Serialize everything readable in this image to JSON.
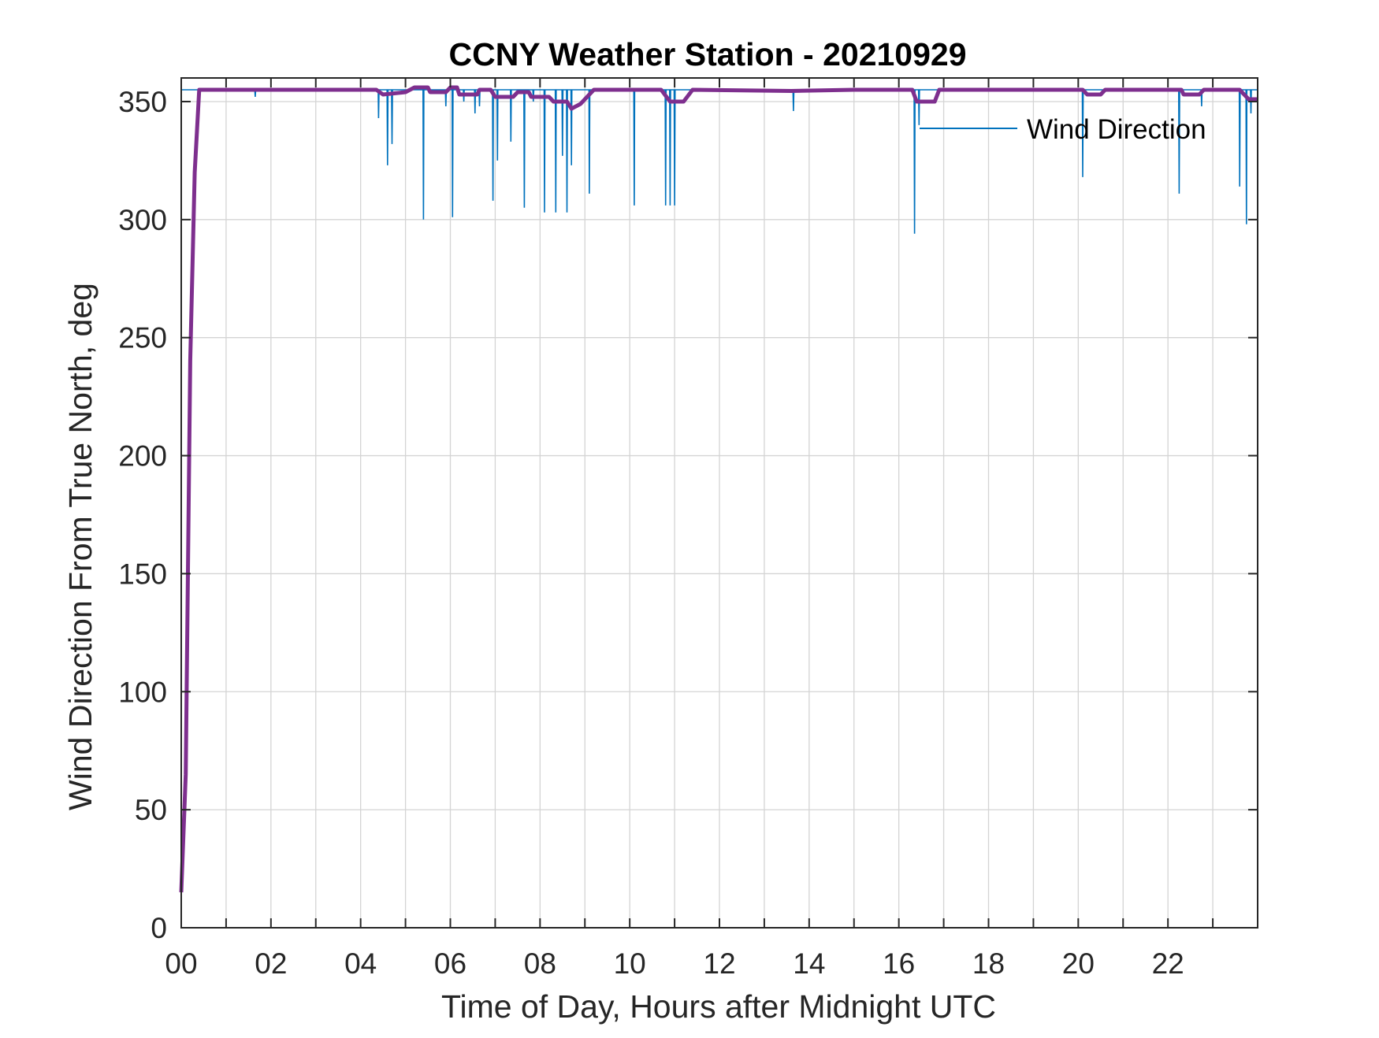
{
  "chart_data": {
    "type": "line",
    "title": "CCNY Weather Station - 20210929",
    "xlabel": "Time of Day, Hours after Midnight UTC",
    "ylabel": "Wind Direction From True North, deg",
    "xlim": [
      0,
      24
    ],
    "ylim": [
      0,
      360
    ],
    "x_ticks": [
      0,
      2,
      4,
      6,
      8,
      10,
      12,
      14,
      16,
      18,
      20,
      22
    ],
    "x_tick_labels": [
      "00",
      "02",
      "04",
      "06",
      "08",
      "10",
      "12",
      "14",
      "16",
      "18",
      "20",
      "22"
    ],
    "y_ticks": [
      0,
      50,
      100,
      150,
      200,
      250,
      300,
      350
    ],
    "y_tick_labels": [
      "0",
      "50",
      "100",
      "150",
      "200",
      "250",
      "300",
      "350"
    ],
    "grid": true,
    "legend": {
      "position": "top-right",
      "entries": [
        "Wind Direction"
      ]
    },
    "series": [
      {
        "name": "Wind Direction",
        "color": "#0072BD",
        "baseline": [
          [
            0,
            355
          ],
          [
            24,
            355
          ]
        ],
        "spikes": [
          [
            1.65,
            352
          ],
          [
            4.4,
            343
          ],
          [
            4.6,
            323
          ],
          [
            4.7,
            332
          ],
          [
            5.4,
            300
          ],
          [
            5.9,
            348
          ],
          [
            6.05,
            301
          ],
          [
            6.3,
            350
          ],
          [
            6.55,
            345
          ],
          [
            6.65,
            348
          ],
          [
            6.95,
            308
          ],
          [
            7.05,
            325
          ],
          [
            7.35,
            333
          ],
          [
            7.65,
            305
          ],
          [
            7.85,
            350
          ],
          [
            8.1,
            303
          ],
          [
            8.35,
            303
          ],
          [
            8.5,
            327
          ],
          [
            8.6,
            303
          ],
          [
            8.7,
            323
          ],
          [
            9.1,
            311
          ],
          [
            10.1,
            306
          ],
          [
            10.8,
            306
          ],
          [
            10.9,
            306
          ],
          [
            11.0,
            306
          ],
          [
            13.65,
            346
          ],
          [
            16.35,
            294
          ],
          [
            16.45,
            340
          ],
          [
            20.1,
            318
          ],
          [
            22.25,
            311
          ],
          [
            22.75,
            348
          ],
          [
            23.6,
            314
          ],
          [
            23.75,
            298
          ],
          [
            23.85,
            345
          ]
        ]
      },
      {
        "name": "",
        "color": "#7E2F8E",
        "points": [
          [
            0,
            15
          ],
          [
            0.1,
            65
          ],
          [
            0.2,
            240
          ],
          [
            0.3,
            320
          ],
          [
            0.4,
            355
          ],
          [
            4.35,
            355
          ],
          [
            4.5,
            353
          ],
          [
            5.0,
            354
          ],
          [
            5.2,
            356
          ],
          [
            5.5,
            356
          ],
          [
            5.55,
            354
          ],
          [
            5.9,
            354
          ],
          [
            6.0,
            356
          ],
          [
            6.15,
            356
          ],
          [
            6.2,
            353
          ],
          [
            6.6,
            353
          ],
          [
            6.65,
            355
          ],
          [
            6.9,
            355
          ],
          [
            7.0,
            352
          ],
          [
            7.4,
            352
          ],
          [
            7.5,
            354
          ],
          [
            7.75,
            354
          ],
          [
            7.8,
            352
          ],
          [
            8.2,
            352
          ],
          [
            8.3,
            350
          ],
          [
            8.6,
            350
          ],
          [
            8.7,
            347
          ],
          [
            8.9,
            349
          ],
          [
            9.1,
            353
          ],
          [
            9.2,
            355
          ],
          [
            10.55,
            355
          ],
          [
            10.65,
            355
          ],
          [
            10.7,
            355
          ],
          [
            10.9,
            350
          ],
          [
            11.2,
            350
          ],
          [
            11.4,
            355
          ],
          [
            13.6,
            354.5
          ],
          [
            15.0,
            355
          ],
          [
            16.3,
            355
          ],
          [
            16.4,
            350
          ],
          [
            16.8,
            350
          ],
          [
            16.9,
            355
          ],
          [
            20.1,
            355
          ],
          [
            20.2,
            353
          ],
          [
            20.5,
            353
          ],
          [
            20.6,
            355
          ],
          [
            22.3,
            355
          ],
          [
            22.35,
            353
          ],
          [
            22.7,
            353
          ],
          [
            22.8,
            355
          ],
          [
            23.6,
            355
          ],
          [
            23.8,
            351
          ],
          [
            24.0,
            351
          ]
        ]
      }
    ]
  }
}
